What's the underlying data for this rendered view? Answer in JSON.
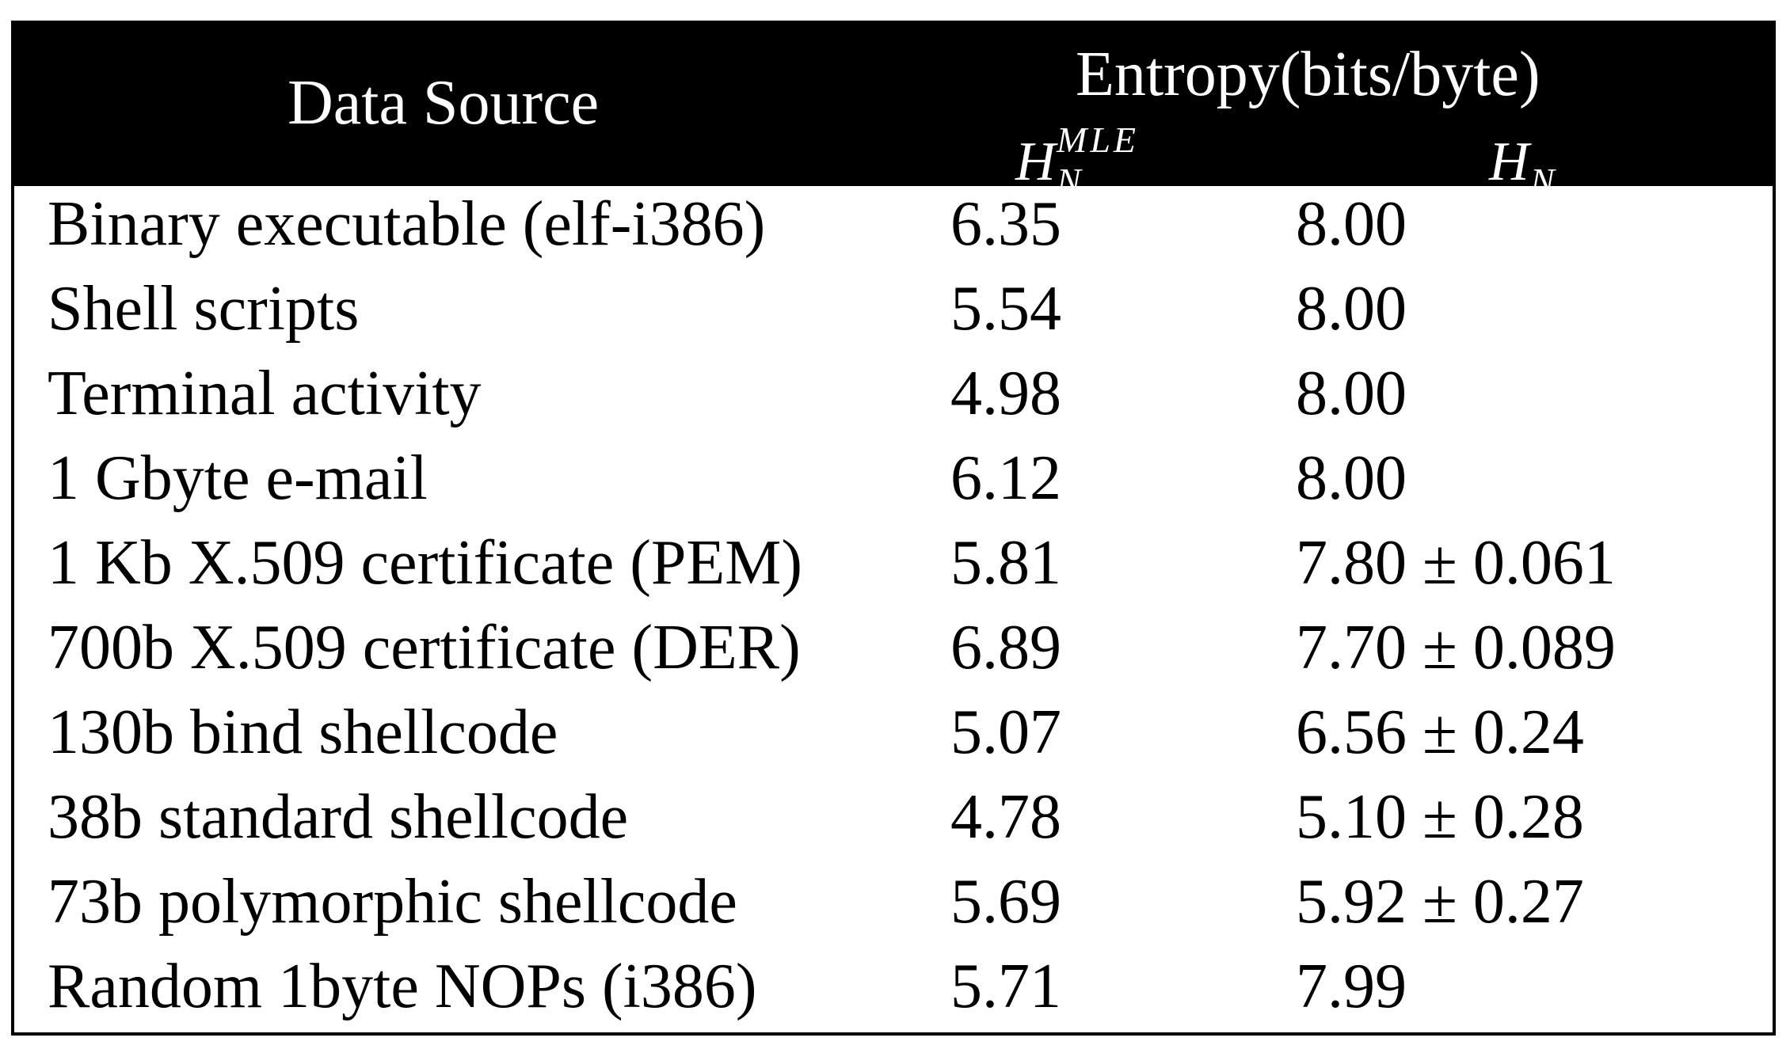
{
  "header": {
    "data_source": "Data Source",
    "entropy": "Entropy(bits/byte)",
    "col_mle": {
      "base": "H",
      "sub": "N",
      "sup": "MLE"
    },
    "col_hn": {
      "base": "H",
      "sub": "N"
    }
  },
  "rows": [
    {
      "source": "Binary executable (elf-i386)",
      "mle": "6.35",
      "hn": "8.00"
    },
    {
      "source": "Shell scripts",
      "mle": "5.54",
      "hn": "8.00"
    },
    {
      "source": "Terminal activity",
      "mle": "4.98",
      "hn": "8.00"
    },
    {
      "source": "1 Gbyte e-mail",
      "mle": "6.12",
      "hn": "8.00"
    },
    {
      "source": "1 Kb X.509 certificate (PEM)",
      "mle": "5.81",
      "hn": "7.80 ± 0.061"
    },
    {
      "source": "700b X.509 certificate (DER)",
      "mle": "6.89",
      "hn": "7.70 ± 0.089"
    },
    {
      "source": "130b bind shellcode",
      "mle": "5.07",
      "hn": "6.56 ± 0.24"
    },
    {
      "source": "38b standard shellcode",
      "mle": "4.78",
      "hn": "5.10 ± 0.28"
    },
    {
      "source": "73b polymorphic shellcode",
      "mle": "5.69",
      "hn": "5.92 ± 0.27"
    },
    {
      "source": "Random 1byte NOPs (i386)",
      "mle": "5.71",
      "hn": "7.99"
    }
  ]
}
